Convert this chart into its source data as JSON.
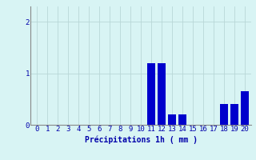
{
  "hours": [
    0,
    1,
    2,
    3,
    4,
    5,
    6,
    7,
    8,
    9,
    10,
    11,
    12,
    13,
    14,
    15,
    16,
    17,
    18,
    19,
    20
  ],
  "values": [
    0,
    0,
    0,
    0,
    0,
    0,
    0,
    0,
    0,
    0,
    0,
    1.2,
    1.2,
    0.2,
    0.2,
    0,
    0,
    0,
    0.4,
    0.4,
    0.65
  ],
  "bar_color": "#0000cc",
  "background_color": "#d8f4f4",
  "grid_color": "#b8d8d8",
  "axis_label_color": "#0000aa",
  "tick_color": "#0000aa",
  "xlabel": "Précipitations 1h ( mm )",
  "ylim": [
    0,
    2.3
  ],
  "yticks": [
    0,
    1,
    2
  ],
  "xlim": [
    -0.6,
    20.6
  ],
  "xlabel_fontsize": 7,
  "tick_fontsize": 6.5,
  "bar_width": 0.75
}
